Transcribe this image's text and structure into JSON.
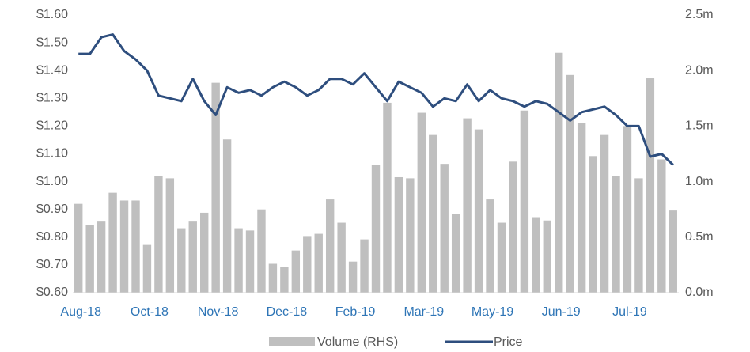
{
  "chart_data": {
    "type": "bar_line",
    "categories": [
      "Aug-18",
      null,
      null,
      null,
      null,
      null,
      "Oct-18",
      null,
      null,
      null,
      null,
      null,
      "Nov-18",
      null,
      null,
      null,
      null,
      null,
      "Dec-18",
      null,
      null,
      null,
      null,
      null,
      "Feb-19",
      null,
      null,
      null,
      null,
      null,
      "Mar-19",
      null,
      null,
      null,
      null,
      null,
      "May-19",
      null,
      null,
      null,
      null,
      null,
      "Jun-19",
      null,
      null,
      null,
      null,
      null,
      "Jul-19",
      null,
      null,
      null,
      null
    ],
    "series": [
      {
        "name": "Volume (RHS)",
        "type": "bar",
        "axis": "y2",
        "color": "#bfbfbf",
        "values": [
          0.8,
          0.61,
          0.64,
          0.9,
          0.83,
          0.83,
          0.43,
          1.05,
          1.03,
          0.58,
          0.64,
          0.72,
          1.89,
          1.38,
          0.58,
          0.56,
          0.75,
          0.26,
          0.23,
          0.38,
          0.51,
          0.53,
          0.84,
          0.63,
          0.28,
          0.48,
          1.15,
          1.71,
          1.04,
          1.03,
          1.62,
          1.42,
          1.16,
          0.71,
          1.57,
          1.47,
          0.84,
          0.63,
          1.18,
          1.64,
          0.68,
          0.65,
          2.16,
          1.96,
          1.53,
          1.23,
          1.42,
          1.05,
          1.5,
          1.03,
          1.93,
          1.2,
          0.74
        ]
      },
      {
        "name": "Price",
        "type": "line",
        "color": "#2e4e7e",
        "values": [
          1.46,
          1.46,
          1.52,
          1.53,
          1.47,
          1.44,
          1.4,
          1.31,
          1.3,
          1.29,
          1.37,
          1.29,
          1.24,
          1.34,
          1.32,
          1.33,
          1.31,
          1.34,
          1.36,
          1.34,
          1.31,
          1.33,
          1.37,
          1.37,
          1.35,
          1.39,
          1.34,
          1.29,
          1.36,
          1.34,
          1.32,
          1.27,
          1.3,
          1.29,
          1.35,
          1.29,
          1.33,
          1.3,
          1.29,
          1.27,
          1.29,
          1.28,
          1.25,
          1.22,
          1.25,
          1.26,
          1.27,
          1.24,
          1.2,
          1.2,
          1.09,
          1.1,
          1.06
        ]
      }
    ],
    "ylim": [
      0.6,
      1.6
    ],
    "yticks": [
      {
        "value": 0.6,
        "label": "$0.60"
      },
      {
        "value": 0.7,
        "label": "$0.70"
      },
      {
        "value": 0.8,
        "label": "$0.80"
      },
      {
        "value": 0.9,
        "label": "$0.90"
      },
      {
        "value": 1.0,
        "label": "$1.00"
      },
      {
        "value": 1.1,
        "label": "$1.10"
      },
      {
        "value": 1.2,
        "label": "$1.20"
      },
      {
        "value": 1.3,
        "label": "$1.30"
      },
      {
        "value": 1.4,
        "label": "$1.40"
      },
      {
        "value": 1.5,
        "label": "$1.50"
      },
      {
        "value": 1.6,
        "label": "$1.60"
      }
    ],
    "y2lim": [
      0,
      2.5
    ],
    "y2ticks": [
      {
        "value": 0,
        "label": "0.0m"
      },
      {
        "value": 0.5,
        "label": "0.5m"
      },
      {
        "value": 1.0,
        "label": "1.0m"
      },
      {
        "value": 1.5,
        "label": "1.5m"
      },
      {
        "value": 2.0,
        "label": "2.0m"
      },
      {
        "value": 2.5,
        "label": "2.5m"
      }
    ],
    "legend": "bottom"
  }
}
